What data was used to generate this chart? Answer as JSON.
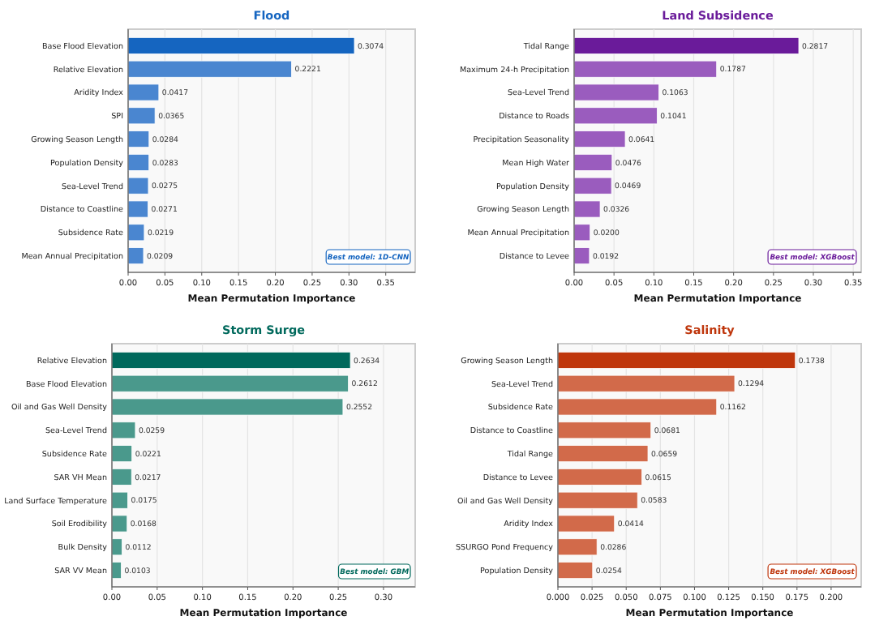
{
  "chart_data": [
    {
      "type": "bar",
      "orientation": "horizontal",
      "title": "Flood",
      "xlabel": "Mean Permutation Importance",
      "categories": [
        "Base Flood Elevation",
        "Relative Elevation",
        "Aridity Index",
        "SPI",
        "Growing Season Length",
        "Population Density",
        "Sea-Level Trend",
        "Distance to Coastline",
        "Subsidence Rate",
        "Mean Annual Precipitation"
      ],
      "values": [
        0.3074,
        0.2221,
        0.0417,
        0.0365,
        0.0284,
        0.0283,
        0.0275,
        0.0271,
        0.0219,
        0.0209
      ],
      "colors": [
        "#1565c0",
        "#4a86d0",
        "#4a86d0",
        "#4a86d0",
        "#4a86d0",
        "#4a86d0",
        "#4a86d0",
        "#4a86d0",
        "#4a86d0",
        "#4a86d0"
      ],
      "xlim": [
        0,
        0.39
      ],
      "xticks": [
        {
          "value": 0,
          "label": "0.00"
        },
        0.05,
        {
          "value": 0.1,
          "label": "0.10"
        },
        0.15,
        {
          "value": 0.2,
          "label": "0.20"
        },
        0.25,
        {
          "value": 0.3,
          "label": "0.30"
        },
        0.35
      ],
      "grid": "x",
      "data_labels": true,
      "annotations": [
        "Best model: 1D-CNN"
      ]
    },
    {
      "type": "bar",
      "orientation": "horizontal",
      "title": "Land Subsidence",
      "xlabel": "Mean Permutation Importance",
      "categories": [
        "Tidal Range",
        "Maximum 24-h Precipitation",
        "Sea-Level Trend",
        "Distance to Roads",
        "Precipitation Seasonality",
        "Mean High Water",
        "Population Density",
        "Growing Season Length",
        "Mean Annual Precipitation",
        "Distance to Levee"
      ],
      "values": [
        0.2817,
        0.1787,
        0.1063,
        0.1041,
        0.0641,
        0.0476,
        0.0469,
        0.0326,
        0.02,
        0.0192
      ],
      "colors": [
        "#6a1b9a",
        "#9a5cbe",
        "#9a5cbe",
        "#9a5cbe",
        "#9a5cbe",
        "#9a5cbe",
        "#9a5cbe",
        "#9a5cbe",
        "#9a5cbe",
        "#9a5cbe"
      ],
      "value_labels": [
        "0.2817",
        "0.1787",
        "0.1063",
        "0.1041",
        "0.0641",
        "0.0476",
        "0.0469",
        "0.0326",
        "0.0200",
        "0.0192"
      ],
      "xlim": [
        0,
        0.36
      ],
      "xticks": [
        {
          "value": 0,
          "label": "0.00"
        },
        0.05,
        {
          "value": 0.1,
          "label": "0.10"
        },
        0.15,
        {
          "value": 0.2,
          "label": "0.20"
        },
        0.25,
        {
          "value": 0.3,
          "label": "0.30"
        },
        0.35
      ],
      "grid": "x",
      "annotations": [
        "Best model: XGBoost"
      ]
    },
    {
      "type": "bar",
      "orientation": "horizontal",
      "title": "Storm Surge",
      "xlabel": "Mean Permutation Importance",
      "categories": [
        "Relative Elevation",
        "Base Flood Elevation",
        "Oil and Gas Well Density",
        "Sea-Level Trend",
        "Subsidence Rate",
        "SAR VH Mean",
        "Land Surface Temperature",
        "Soil Erodibility",
        "Bulk Density",
        "SAR VV Mean"
      ],
      "values": [
        0.2634,
        0.2612,
        0.2552,
        0.0259,
        0.0221,
        0.0217,
        0.0175,
        0.0168,
        0.0112,
        0.0103
      ],
      "colors": [
        "#00695c",
        "#4a998c",
        "#4a998c",
        "#4a998c",
        "#4a998c",
        "#4a998c",
        "#4a998c",
        "#4a998c",
        "#4a998c",
        "#4a998c"
      ],
      "xlim": [
        0,
        0.335
      ],
      "xticks": [
        {
          "value": 0,
          "label": "0.00"
        },
        0.05,
        {
          "value": 0.1,
          "label": "0.10"
        },
        0.15,
        {
          "value": 0.2,
          "label": "0.20"
        },
        0.25,
        {
          "value": 0.3,
          "label": "0.30"
        }
      ],
      "grid": "x",
      "data_labels": true,
      "annotations": [
        "Best model: GBM"
      ]
    },
    {
      "type": "bar",
      "orientation": "horizontal",
      "title": "Salinity",
      "xlabel": "Mean Permutation Importance",
      "categories": [
        "Growing Season Length",
        "Sea-Level Trend",
        "Subsidence Rate",
        "Distance to Coastline",
        "Tidal Range",
        "Distance to Levee",
        "Oil and Gas Well Density",
        "Aridity Index",
        "SSURGO Pond Frequency",
        "Population Density"
      ],
      "values": [
        0.1738,
        0.1294,
        0.1162,
        0.0681,
        0.0659,
        0.0615,
        0.0583,
        0.0414,
        0.0286,
        0.0254
      ],
      "colors": [
        "#bf360c",
        "#d26a4a",
        "#d26a4a",
        "#d26a4a",
        "#d26a4a",
        "#d26a4a",
        "#d26a4a",
        "#d26a4a",
        "#d26a4a",
        "#d26a4a"
      ],
      "xlim": [
        0,
        0.222
      ],
      "xticks": [
        {
          "value": 0,
          "label": "0.000"
        },
        0.025,
        {
          "value": 0.05,
          "label": "0.050"
        },
        0.075,
        {
          "value": 0.1,
          "label": "0.100"
        },
        0.125,
        {
          "value": 0.15,
          "label": "0.150"
        },
        0.175,
        {
          "value": 0.2,
          "label": "0.200"
        }
      ],
      "grid": "x",
      "data_labels": true,
      "annotations": [
        "Best model: XGBoost"
      ]
    }
  ]
}
